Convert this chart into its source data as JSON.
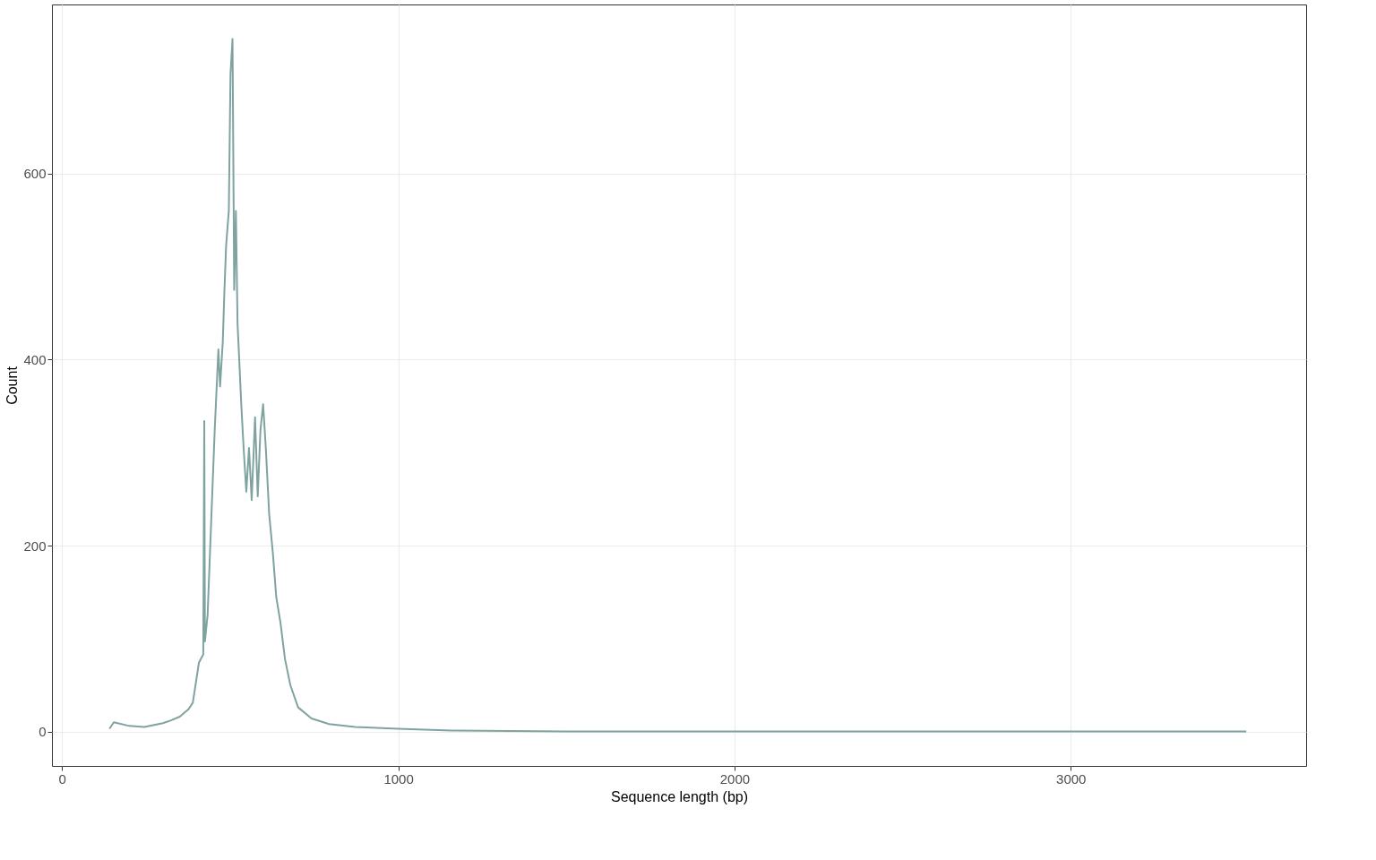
{
  "chart_data": {
    "type": "line",
    "xlabel": "Sequence length (bp)",
    "ylabel": "Count",
    "x": [
      141,
      154,
      200,
      245,
      300,
      324,
      350,
      376,
      389,
      407,
      420,
      423,
      425,
      433,
      444,
      454,
      465,
      470,
      478,
      483,
      488,
      496,
      501,
      507,
      512,
      517,
      522,
      527,
      533,
      540,
      548,
      556,
      564,
      574,
      582,
      590,
      598,
      606,
      616,
      627,
      637,
      650,
      663,
      679,
      702,
      742,
      794,
      872,
      1000,
      1159,
      1500,
      2000,
      2500,
      3000,
      3522
    ],
    "series": [
      {
        "color": "#7fa3a1",
        "values": [
          3,
          10,
          6,
          5,
          9,
          12,
          16,
          24,
          31,
          74,
          83,
          334,
          97,
          126,
          230,
          324,
          411,
          371,
          419,
          475,
          523,
          560,
          707,
          745,
          475,
          560,
          438,
          400,
          352,
          305,
          258,
          305,
          249,
          338,
          253,
          324,
          352,
          305,
          234,
          192,
          145,
          116,
          78,
          50,
          26,
          14,
          8,
          5,
          3,
          1,
          0,
          0,
          0,
          0,
          0
        ]
      }
    ],
    "xlim": [
      -30,
      3700
    ],
    "ylim": [
      -37,
      782
    ],
    "xticks": [
      0,
      1000,
      2000,
      3000
    ],
    "yticks": [
      0,
      200,
      400,
      600
    ],
    "grid": true,
    "legend": false
  }
}
